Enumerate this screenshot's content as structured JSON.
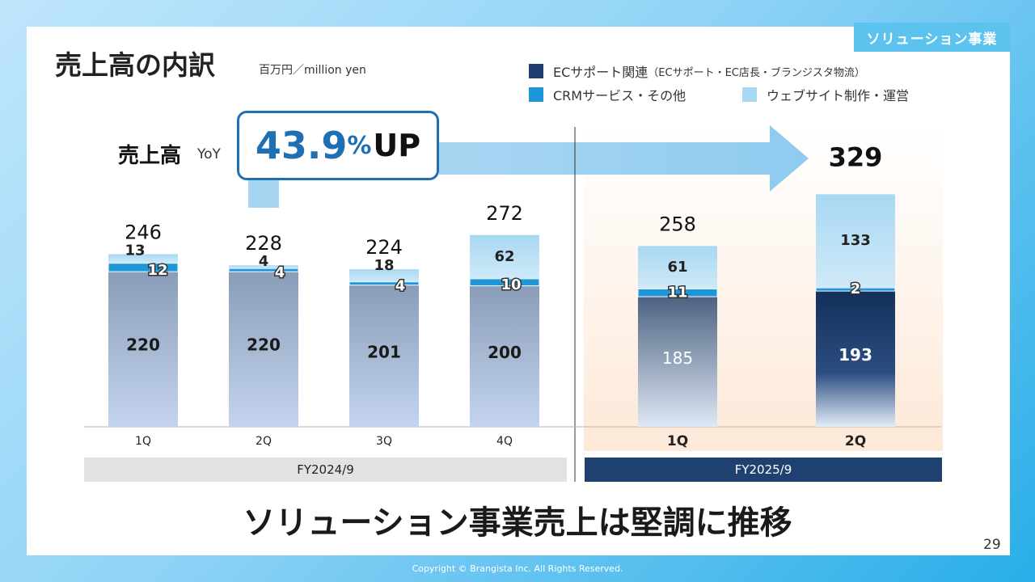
{
  "section_tag": "ソリューション事業",
  "title": "売上高の内訳",
  "unit": "百万円／million yen",
  "legend": [
    {
      "label": "ECサポート関連",
      "sub": "（ECサポート・EC店長・ブランジスタ物流）",
      "color": "#1f3f73"
    },
    {
      "label": "CRMサービス・その他",
      "sub": "",
      "color": "#1e96d8"
    },
    {
      "label": "ウェブサイト制作・運営",
      "sub": "",
      "color": "#a8d8f2"
    }
  ],
  "yoy": {
    "label": "売上高",
    "small": "YoY",
    "value": "43.9",
    "pct": "%",
    "up": "UP"
  },
  "chart_data": {
    "type": "bar",
    "stacked": true,
    "categories": [
      "1Q",
      "2Q",
      "3Q",
      "4Q",
      "1Q",
      "2Q"
    ],
    "series": [
      {
        "name": "ECサポート関連",
        "values": [
          220,
          220,
          201,
          200,
          185,
          193
        ]
      },
      {
        "name": "CRMサービス・その他",
        "values": [
          12,
          4,
          4,
          10,
          11,
          2
        ]
      },
      {
        "name": "ウェブサイト制作・運営",
        "values": [
          13,
          4,
          18,
          62,
          61,
          133
        ]
      }
    ],
    "totals": [
      "246",
      "228",
      "224",
      "272",
      "258",
      "329"
    ],
    "ec_labels": [
      "220",
      "220",
      "201",
      "200",
      "185",
      "193"
    ],
    "crm_labels": [
      "12",
      "4",
      "4",
      "10",
      "11",
      "2"
    ],
    "web_labels": [
      "13",
      "4",
      "18",
      "62",
      "61",
      "133"
    ],
    "groups": [
      "FY2024/9",
      "FY2025/9"
    ]
  },
  "headline": "ソリューション事業売上は堅調に推移",
  "page_number": "29",
  "copyright": "Copyright © Brangista Inc. All Rights Reserved."
}
